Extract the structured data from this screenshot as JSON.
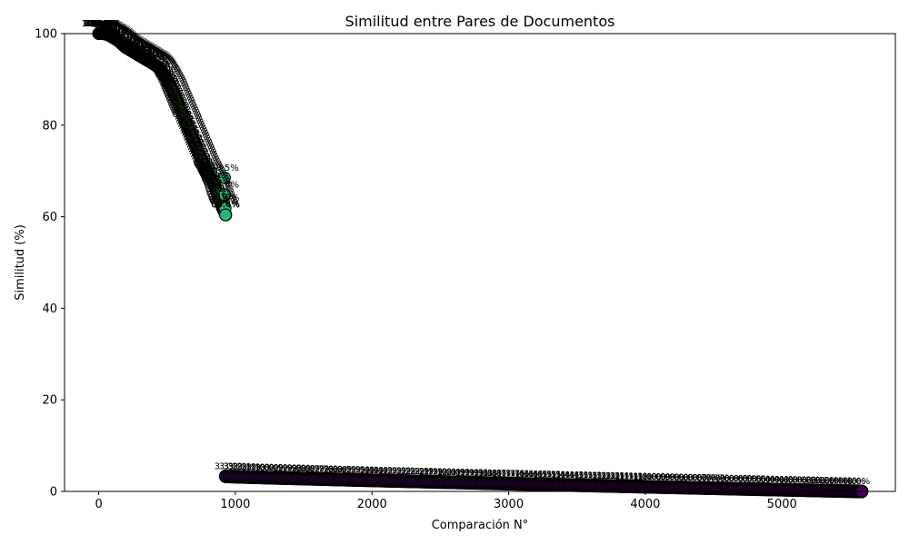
{
  "chart_data": {
    "type": "scatter",
    "title": "Similitud entre Pares de Documentos",
    "xlabel": "Comparación N°",
    "ylabel": "Similitud (%)",
    "xlim": [
      -250,
      5830
    ],
    "ylim": [
      0,
      100
    ],
    "xticks": [
      0,
      1000,
      2000,
      3000,
      4000,
      5000
    ],
    "yticks": [
      0,
      20,
      40,
      60,
      80,
      100
    ],
    "grid": false,
    "legend": "none",
    "total_points": 5583,
    "segments": [
      {
        "name": "upper",
        "x_start": 0,
        "x_end": 930,
        "y_values_sampled": [
          100,
          100,
          99.9,
          99.5,
          99,
          98.5,
          97.8,
          97,
          96.5,
          96,
          95.5,
          95,
          94.5,
          94,
          93.5,
          93,
          92.2,
          91,
          89.5,
          88,
          86,
          84,
          82,
          80,
          78,
          76,
          74,
          72,
          70,
          68.5,
          66.8,
          64.8,
          62.2,
          60.4
        ]
      },
      {
        "name": "lower",
        "x_start": 930,
        "x_end": 5583,
        "y_start": 3.3,
        "y_end": 0.0
      }
    ],
    "visible_labels": [
      {
        "x": 920,
        "y": 68.5,
        "text": "68.5%"
      },
      {
        "x": 922,
        "y": 64.8,
        "text": "64.8%"
      },
      {
        "x": 925,
        "y": 61.9,
        "text": "61.9%"
      },
      {
        "x": 928,
        "y": 60.4,
        "text": "60.4%"
      }
    ],
    "colors": {
      "high": "#bddf26",
      "mid": "#2db27d",
      "low": "#440154",
      "edge": "#000000"
    }
  }
}
